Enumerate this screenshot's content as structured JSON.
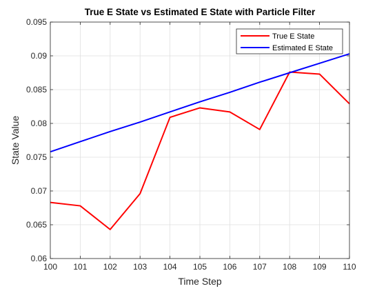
{
  "chart_data": {
    "type": "line",
    "title": "True E State vs Estimated E State with Particle Filter",
    "xlabel": "Time Step",
    "ylabel": "State Value",
    "xlim": [
      100,
      110
    ],
    "ylim": [
      0.06,
      0.095
    ],
    "x_ticks": [
      "100",
      "101",
      "102",
      "103",
      "104",
      "105",
      "106",
      "107",
      "108",
      "109",
      "110"
    ],
    "y_ticks": [
      "0.06",
      "0.065",
      "0.07",
      "0.075",
      "0.08",
      "0.085",
      "0.09",
      "0.095"
    ],
    "grid": true,
    "legend_position": "top-right",
    "x": [
      100,
      101,
      102,
      103,
      104,
      105,
      106,
      107,
      108,
      109,
      110
    ],
    "series": [
      {
        "name": "True E State",
        "color": "#ff0000",
        "values": [
          0.0683,
          0.0678,
          0.0643,
          0.0696,
          0.0809,
          0.0823,
          0.0817,
          0.0791,
          0.0876,
          0.0873,
          0.0829
        ]
      },
      {
        "name": "Estimated E State",
        "color": "#0000ff",
        "values": [
          0.0758,
          0.0773,
          0.0788,
          0.0802,
          0.0817,
          0.0832,
          0.0846,
          0.0861,
          0.0875,
          0.0889,
          0.0903
        ]
      }
    ]
  }
}
